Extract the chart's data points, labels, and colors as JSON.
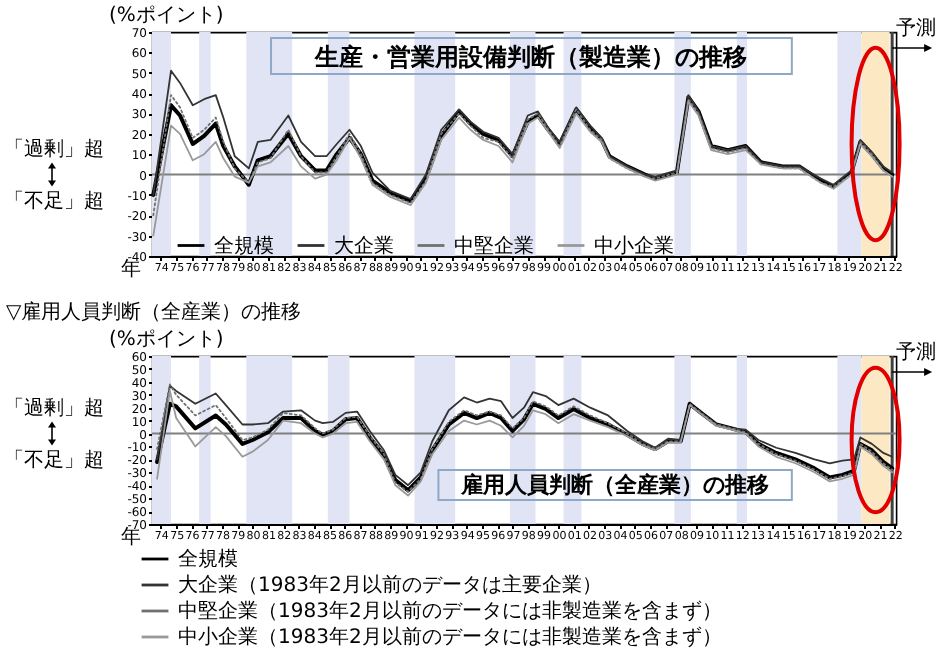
{
  "chart_data": [
    {
      "type": "line",
      "title": "生産・営業用設備判断（製造業）の推移",
      "xlabel": "年",
      "ylabel": "(%ポイント)",
      "annotations": [
        "「過剰」超",
        "「不足」超"
      ],
      "x": [
        "1974-01",
        "1975-03",
        "1975-10",
        "1976-08",
        "1977-05",
        "1978-02",
        "1978-08",
        "1979-05",
        "1980-04",
        "1980-11",
        "1981-09",
        "1982-11",
        "1983-09",
        "1984-08",
        "1985-05",
        "1986-01",
        "1986-11",
        "1987-08",
        "1988-05",
        "1989-07",
        "1990-11",
        "1991-11",
        "1992-11",
        "1994-01",
        "1994-10",
        "1995-08",
        "1996-08",
        "1997-07",
        "1998-07",
        "1999-03",
        "1999-11",
        "2000-08",
        "2001-09",
        "2002-08",
        "2003-05",
        "2003-11",
        "2005-01",
        "2006-03",
        "2006-11",
        "2008-04",
        "2009-01",
        "2009-09",
        "2010-07",
        "2011-08",
        "2012-10",
        "2013-10",
        "2015-03",
        "2016-04",
        "2017-09",
        "2018-07",
        "2019-09",
        "2020-04",
        "2021-01",
        "2021-10",
        "2022-05"
      ],
      "series": [
        {
          "name": "全規模",
          "color": "#000000",
          "line_style": "solid",
          "values": [
            -10,
            34,
            29,
            15,
            19,
            25,
            14,
            4,
            -5,
            7,
            9,
            20,
            9,
            2,
            2,
            10,
            18,
            10,
            -3,
            -9,
            -13,
            -2,
            19,
            31,
            25,
            20,
            17,
            9,
            26,
            29,
            22,
            15,
            32,
            23,
            17,
            9,
            4,
            0,
            -2,
            1,
            38,
            31,
            14,
            12,
            14,
            6,
            4,
            4,
            -3,
            -6,
            1,
            16,
            10,
            3,
            0
          ]
        },
        {
          "name": "大企業",
          "color": "#333333",
          "line_style": "solid",
          "values": [
            -10,
            51,
            45,
            34,
            37,
            39,
            28,
            9,
            3,
            16,
            17,
            29,
            16,
            9,
            9,
            15,
            22,
            14,
            1,
            -8,
            -12,
            0,
            22,
            32,
            26,
            21,
            18,
            10,
            29,
            31,
            23,
            16,
            33,
            24,
            18,
            9,
            4,
            0,
            -1,
            2,
            39,
            31,
            14,
            12,
            14,
            6,
            4,
            4,
            -2,
            -5,
            2,
            17,
            11,
            4,
            1
          ]
        },
        {
          "name": "中堅企業",
          "color": "#707070",
          "line_style": "dotted",
          "values": [
            -20,
            39,
            33,
            18,
            22,
            28,
            16,
            3,
            -4,
            6,
            8,
            22,
            9,
            1,
            1,
            9,
            20,
            10,
            -4,
            -10,
            -14,
            -3,
            20,
            30,
            24,
            18,
            16,
            8,
            27,
            30,
            22,
            14,
            32,
            22,
            17,
            8,
            3,
            -1,
            -2,
            1,
            37,
            30,
            13,
            11,
            13,
            5,
            3,
            3,
            -4,
            -6,
            0,
            16,
            10,
            2,
            -1
          ]
        },
        {
          "name": "中小企業",
          "color": "#999999",
          "line_style": "solid",
          "values": [
            -30,
            24,
            20,
            7,
            10,
            16,
            8,
            -1,
            -4,
            4,
            6,
            14,
            4,
            -2,
            0,
            7,
            18,
            8,
            -5,
            -11,
            -15,
            -4,
            17,
            28,
            22,
            17,
            14,
            6,
            25,
            28,
            21,
            13,
            30,
            21,
            16,
            8,
            3,
            -1,
            -3,
            0,
            36,
            29,
            12,
            10,
            12,
            5,
            3,
            3,
            -4,
            -7,
            0,
            15,
            9,
            2,
            -1
          ]
        }
      ],
      "xlim": [
        "1973-12",
        "2022-08"
      ],
      "ylim": [
        -40,
        70
      ],
      "yticks": [
        -40,
        -30,
        -20,
        -10,
        0,
        10,
        20,
        30,
        40,
        50,
        60,
        70
      ],
      "xticks": [
        {
          "value": "1974-07",
          "label": "74"
        },
        {
          "value": "1975-07",
          "label": "75"
        },
        {
          "value": "1976-07",
          "label": "76"
        },
        {
          "value": "1977-07",
          "label": "77"
        },
        {
          "value": "1978-07",
          "label": "78"
        },
        {
          "value": "1979-07",
          "label": "79"
        },
        {
          "value": "1980-07",
          "label": "80"
        },
        {
          "value": "1981-07",
          "label": "81"
        },
        {
          "value": "1982-07",
          "label": "82"
        },
        {
          "value": "1983-07",
          "label": "83"
        },
        {
          "value": "1984-07",
          "label": "84"
        },
        {
          "value": "1985-07",
          "label": "85"
        },
        {
          "value": "1986-07",
          "label": "86"
        },
        {
          "value": "1987-07",
          "label": "87"
        },
        {
          "value": "1988-07",
          "label": "88"
        },
        {
          "value": "1989-07",
          "label": "89"
        },
        {
          "value": "1990-07",
          "label": "90"
        },
        {
          "value": "1991-07",
          "label": "91"
        },
        {
          "value": "1992-07",
          "label": "92"
        },
        {
          "value": "1993-07",
          "label": "93"
        },
        {
          "value": "1994-07",
          "label": "94"
        },
        {
          "value": "1995-07",
          "label": "95"
        },
        {
          "value": "1996-07",
          "label": "96"
        },
        {
          "value": "1997-07",
          "label": "97"
        },
        {
          "value": "1998-07",
          "label": "98"
        },
        {
          "value": "1999-07",
          "label": "99"
        },
        {
          "value": "2000-07",
          "label": "00"
        },
        {
          "value": "2001-07",
          "label": "01"
        },
        {
          "value": "2002-07",
          "label": "02"
        },
        {
          "value": "2003-07",
          "label": "03"
        },
        {
          "value": "2004-07",
          "label": "04"
        },
        {
          "value": "2005-07",
          "label": "05"
        },
        {
          "value": "2006-07",
          "label": "06"
        },
        {
          "value": "2007-07",
          "label": "07"
        },
        {
          "value": "2008-07",
          "label": "08"
        },
        {
          "value": "2009-07",
          "label": "09"
        },
        {
          "value": "2010-07",
          "label": "10"
        },
        {
          "value": "2011-07",
          "label": "11"
        },
        {
          "value": "2012-07",
          "label": "12"
        },
        {
          "value": "2013-07",
          "label": "13"
        },
        {
          "value": "2014-07",
          "label": "14"
        },
        {
          "value": "2015-07",
          "label": "15"
        },
        {
          "value": "2016-07",
          "label": "16"
        },
        {
          "value": "2017-07",
          "label": "17"
        },
        {
          "value": "2018-07",
          "label": "18"
        },
        {
          "value": "2019-07",
          "label": "19"
        },
        {
          "value": "2020-07",
          "label": "20"
        },
        {
          "value": "2021-07",
          "label": "21"
        },
        {
          "value": "2022-07",
          "label": "22"
        }
      ],
      "bands": [
        {
          "axis": "x",
          "from": "1973-12",
          "to": "1975-03",
          "color": "#e1e4f4"
        },
        {
          "axis": "x",
          "from": "1977-01",
          "to": "1977-10",
          "color": "#e1e4f4"
        },
        {
          "axis": "x",
          "from": "1980-02",
          "to": "1983-02",
          "color": "#e1e4f4"
        },
        {
          "axis": "x",
          "from": "1985-06",
          "to": "1986-11",
          "color": "#e1e4f4"
        },
        {
          "axis": "x",
          "from": "1991-02",
          "to": "1993-10",
          "color": "#e1e4f4"
        },
        {
          "axis": "x",
          "from": "1997-05",
          "to": "1999-01",
          "color": "#e1e4f4"
        },
        {
          "axis": "x",
          "from": "2000-11",
          "to": "2002-01",
          "color": "#e1e4f4"
        },
        {
          "axis": "x",
          "from": "2008-02",
          "to": "2009-03",
          "color": "#e1e4f4"
        },
        {
          "axis": "x",
          "from": "2012-03",
          "to": "2012-11",
          "color": "#e1e4f4"
        },
        {
          "axis": "x",
          "from": "2018-10",
          "to": "2020-05",
          "color": "#e1e4f4"
        },
        {
          "axis": "x",
          "from": "2020-05",
          "to": "2022-03",
          "color": "#fce8c3"
        }
      ],
      "ref_lines": [
        {
          "axis": "y",
          "value": 0,
          "color": "#808080"
        },
        {
          "axis": "x",
          "value": "2022-05",
          "label": "予測",
          "color": "#404040"
        }
      ],
      "grid": false,
      "legend": "bottom left"
    },
    {
      "type": "line",
      "title": "雇用人員判断（全産業）の推移",
      "subtitle": "▽雇用人員判断（全産業）の推移",
      "xlabel": "年",
      "ylabel": "(%ポイント)",
      "annotations": [
        "「過剰」超",
        "「不足」超"
      ],
      "x": [
        "1974-04",
        "1975-02",
        "1975-07",
        "1976-10",
        "1978-02",
        "1978-10",
        "1979-11",
        "1980-07",
        "1981-07",
        "1982-07",
        "1983-09",
        "1984-08",
        "1985-02",
        "1985-10",
        "1986-08",
        "1987-05",
        "1988-03",
        "1989-02",
        "1989-11",
        "1990-09",
        "1991-07",
        "1992-04",
        "1993-05",
        "1994-05",
        "1995-03",
        "1996-01",
        "1996-10",
        "1997-07",
        "1998-04",
        "1998-11",
        "1999-09",
        "2000-07",
        "2001-07",
        "2002-08",
        "2003-10",
        "2005-01",
        "2006-01",
        "2006-11",
        "2007-09",
        "2008-07",
        "2009-02",
        "2009-11",
        "2010-11",
        "2011-11",
        "2012-10",
        "2013-08",
        "2014-10",
        "2016-01",
        "2017-04",
        "2018-04",
        "2019-02",
        "2019-11",
        "2020-04",
        "2021-01",
        "2021-10",
        "2022-05"
      ],
      "series": [
        {
          "name": "全規模",
          "color": "#000000",
          "line_style": "solid",
          "values": [
            -22,
            23,
            21,
            4,
            14,
            7,
            -8,
            -5,
            1,
            12,
            12,
            2,
            -1,
            2,
            11,
            12,
            -3,
            -17,
            -36,
            -44,
            -34,
            -13,
            7,
            16,
            12,
            16,
            12,
            2,
            11,
            23,
            19,
            12,
            19,
            12,
            7,
            -1,
            -8,
            -12,
            -6,
            -6,
            23,
            16,
            7,
            4,
            1,
            -8,
            -15,
            -20,
            -27,
            -34,
            -32,
            -29,
            -8,
            -13,
            -22,
            -27
          ]
        },
        {
          "name": "大企業（1983年2月以前のデータは主要企業）",
          "color": "#333333",
          "line_style": "solid",
          "values": [
            -20,
            37,
            33,
            23,
            31,
            22,
            7,
            7,
            8,
            17,
            18,
            10,
            8,
            9,
            16,
            17,
            2,
            -13,
            -32,
            -40,
            -30,
            -6,
            18,
            28,
            24,
            27,
            25,
            12,
            20,
            32,
            29,
            22,
            27,
            20,
            14,
            2,
            -6,
            -11,
            -4,
            -5,
            22,
            16,
            7,
            4,
            3,
            -5,
            -11,
            -15,
            -20,
            -23,
            -21,
            -20,
            -3,
            -8,
            -15,
            -18
          ]
        },
        {
          "name": "中堅企業（1983年2月以前のデータには非製造業を含まず）",
          "color": "#707070",
          "line_style": "dotted",
          "values": [
            -12,
            38,
            30,
            14,
            22,
            12,
            -5,
            -3,
            3,
            16,
            14,
            4,
            0,
            3,
            12,
            13,
            -2,
            -16,
            -38,
            -45,
            -35,
            -12,
            9,
            18,
            14,
            17,
            14,
            4,
            12,
            25,
            21,
            14,
            21,
            14,
            8,
            0,
            -8,
            -12,
            -6,
            -6,
            23,
            16,
            7,
            4,
            1,
            -8,
            -16,
            -21,
            -28,
            -35,
            -33,
            -30,
            -8,
            -14,
            -23,
            -28
          ]
        },
        {
          "name": "中小企業（1983年2月以前のデータには非製造業を含まず）",
          "color": "#999999",
          "line_style": "solid",
          "values": [
            -35,
            33,
            12,
            -10,
            5,
            -2,
            -18,
            -14,
            -5,
            10,
            8,
            0,
            -3,
            0,
            8,
            9,
            -6,
            -20,
            -40,
            -48,
            -37,
            -16,
            2,
            10,
            7,
            10,
            6,
            -3,
            6,
            18,
            15,
            8,
            15,
            10,
            5,
            -2,
            -9,
            -13,
            -7,
            -7,
            22,
            15,
            6,
            3,
            0,
            -10,
            -18,
            -23,
            -30,
            -37,
            -35,
            -32,
            -10,
            -16,
            -25,
            -30
          ]
        }
      ],
      "xlim": [
        "1973-12",
        "2022-08"
      ],
      "ylim": [
        -70,
        60
      ],
      "yticks": [
        -70,
        -60,
        -50,
        -40,
        -30,
        -20,
        -10,
        0,
        10,
        20,
        30,
        40,
        50,
        60
      ],
      "xticks": [
        {
          "value": "1974-07",
          "label": "74"
        },
        {
          "value": "1975-07",
          "label": "75"
        },
        {
          "value": "1976-07",
          "label": "76"
        },
        {
          "value": "1977-07",
          "label": "77"
        },
        {
          "value": "1978-07",
          "label": "78"
        },
        {
          "value": "1979-07",
          "label": "79"
        },
        {
          "value": "1980-07",
          "label": "80"
        },
        {
          "value": "1981-07",
          "label": "81"
        },
        {
          "value": "1982-07",
          "label": "82"
        },
        {
          "value": "1983-07",
          "label": "83"
        },
        {
          "value": "1984-07",
          "label": "84"
        },
        {
          "value": "1985-07",
          "label": "85"
        },
        {
          "value": "1986-07",
          "label": "86"
        },
        {
          "value": "1987-07",
          "label": "87"
        },
        {
          "value": "1988-07",
          "label": "88"
        },
        {
          "value": "1989-07",
          "label": "89"
        },
        {
          "value": "1990-07",
          "label": "90"
        },
        {
          "value": "1991-07",
          "label": "91"
        },
        {
          "value": "1992-07",
          "label": "92"
        },
        {
          "value": "1993-07",
          "label": "93"
        },
        {
          "value": "1994-07",
          "label": "94"
        },
        {
          "value": "1995-07",
          "label": "95"
        },
        {
          "value": "1996-07",
          "label": "96"
        },
        {
          "value": "1997-07",
          "label": "97"
        },
        {
          "value": "1998-07",
          "label": "98"
        },
        {
          "value": "1999-07",
          "label": "99"
        },
        {
          "value": "2000-07",
          "label": "00"
        },
        {
          "value": "2001-07",
          "label": "01"
        },
        {
          "value": "2002-07",
          "label": "02"
        },
        {
          "value": "2003-07",
          "label": "03"
        },
        {
          "value": "2004-07",
          "label": "04"
        },
        {
          "value": "2005-07",
          "label": "05"
        },
        {
          "value": "2006-07",
          "label": "06"
        },
        {
          "value": "2007-07",
          "label": "07"
        },
        {
          "value": "2008-07",
          "label": "08"
        },
        {
          "value": "2009-07",
          "label": "09"
        },
        {
          "value": "2010-07",
          "label": "10"
        },
        {
          "value": "2011-07",
          "label": "11"
        },
        {
          "value": "2012-07",
          "label": "12"
        },
        {
          "value": "2013-07",
          "label": "13"
        },
        {
          "value": "2014-07",
          "label": "14"
        },
        {
          "value": "2015-07",
          "label": "15"
        },
        {
          "value": "2016-07",
          "label": "16"
        },
        {
          "value": "2017-07",
          "label": "17"
        },
        {
          "value": "2018-07",
          "label": "18"
        },
        {
          "value": "2019-07",
          "label": "19"
        },
        {
          "value": "2020-07",
          "label": "20"
        },
        {
          "value": "2021-07",
          "label": "21"
        },
        {
          "value": "2022-07",
          "label": "22"
        }
      ],
      "bands": [
        {
          "axis": "x",
          "from": "1973-12",
          "to": "1975-03",
          "color": "#e1e4f4"
        },
        {
          "axis": "x",
          "from": "1977-01",
          "to": "1977-10",
          "color": "#e1e4f4"
        },
        {
          "axis": "x",
          "from": "1980-02",
          "to": "1983-02",
          "color": "#e1e4f4"
        },
        {
          "axis": "x",
          "from": "1985-06",
          "to": "1986-11",
          "color": "#e1e4f4"
        },
        {
          "axis": "x",
          "from": "1991-02",
          "to": "1993-10",
          "color": "#e1e4f4"
        },
        {
          "axis": "x",
          "from": "1997-05",
          "to": "1999-01",
          "color": "#e1e4f4"
        },
        {
          "axis": "x",
          "from": "2000-11",
          "to": "2002-01",
          "color": "#e1e4f4"
        },
        {
          "axis": "x",
          "from": "2008-02",
          "to": "2009-03",
          "color": "#e1e4f4"
        },
        {
          "axis": "x",
          "from": "2012-03",
          "to": "2012-11",
          "color": "#e1e4f4"
        },
        {
          "axis": "x",
          "from": "2018-10",
          "to": "2020-05",
          "color": "#e1e4f4"
        },
        {
          "axis": "x",
          "from": "2020-05",
          "to": "2022-03",
          "color": "#fce8c3"
        }
      ],
      "ref_lines": [
        {
          "axis": "y",
          "value": 0,
          "color": "#808080"
        },
        {
          "axis": "x",
          "value": "2022-05",
          "label": "予測",
          "color": "#404040"
        }
      ],
      "grid": false,
      "legend": "bottom"
    }
  ]
}
